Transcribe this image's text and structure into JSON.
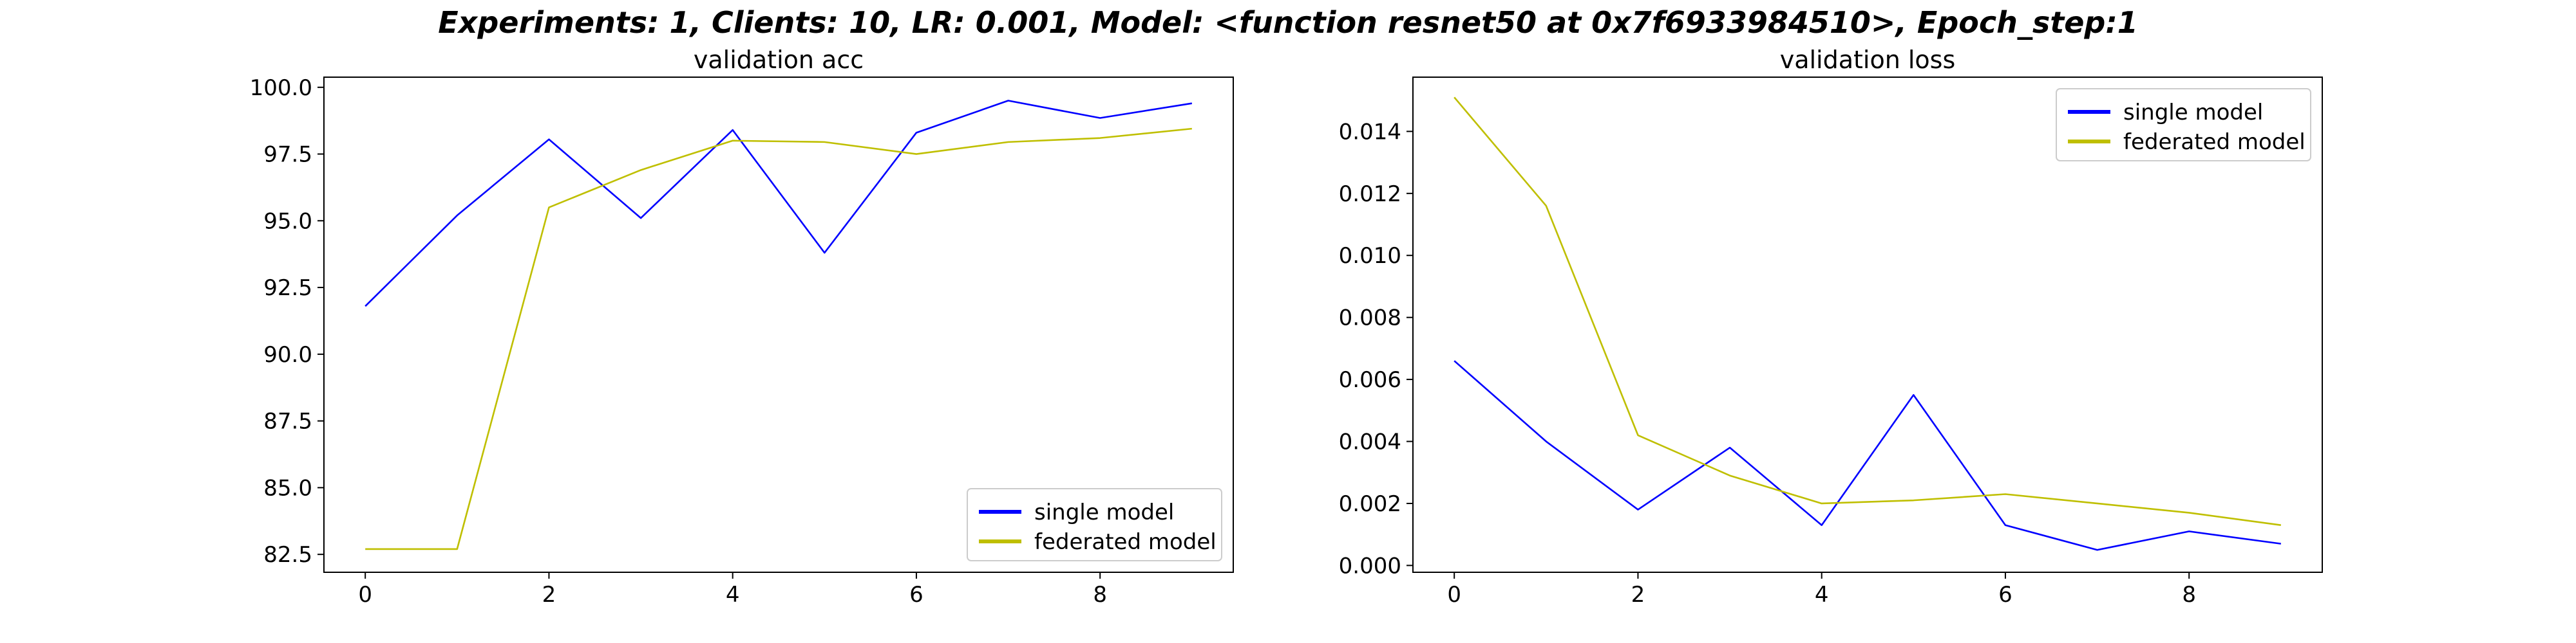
{
  "figure": {
    "suptitle": "Experiments: 1, Clients: 10, LR: 0.001, Model: <function resnet50 at 0x7f6933984510>, Epoch_step:1"
  },
  "chart_data": [
    {
      "type": "line",
      "title": "validation acc",
      "xlabel": "",
      "ylabel": "",
      "x": [
        0,
        1,
        2,
        3,
        4,
        5,
        6,
        7,
        8,
        9
      ],
      "xticks": [
        "0",
        "2",
        "4",
        "6",
        "8"
      ],
      "xtick_values": [
        0,
        2,
        4,
        6,
        8
      ],
      "xlim": [
        -0.45,
        9.45
      ],
      "yticks": [
        "82.5",
        "85.0",
        "87.5",
        "90.0",
        "92.5",
        "95.0",
        "97.5",
        "100.0"
      ],
      "ytick_values": [
        82.5,
        85.0,
        87.5,
        90.0,
        92.5,
        95.0,
        97.5,
        100.0
      ],
      "ylim": [
        81.83,
        100.38
      ],
      "grid": false,
      "legend_position": "lower-right",
      "series": [
        {
          "name": "single model",
          "color": "#0000ff",
          "values": [
            91.8,
            95.2,
            98.05,
            95.1,
            98.4,
            93.8,
            98.3,
            99.5,
            98.85,
            99.4
          ]
        },
        {
          "name": "federated model",
          "color": "#bfbf00",
          "values": [
            82.7,
            82.7,
            95.5,
            96.9,
            98.0,
            97.95,
            97.5,
            97.95,
            98.1,
            98.45
          ]
        }
      ]
    },
    {
      "type": "line",
      "title": "validation loss",
      "xlabel": "",
      "ylabel": "",
      "x": [
        0,
        1,
        2,
        3,
        4,
        5,
        6,
        7,
        8,
        9
      ],
      "xticks": [
        "0",
        "2",
        "4",
        "6",
        "8"
      ],
      "xtick_values": [
        0,
        2,
        4,
        6,
        8
      ],
      "xlim": [
        -0.45,
        9.45
      ],
      "yticks": [
        "0.000",
        "0.002",
        "0.004",
        "0.006",
        "0.008",
        "0.010",
        "0.012",
        "0.014"
      ],
      "ytick_values": [
        0,
        0.002,
        0.004,
        0.006,
        0.008,
        0.01,
        0.012,
        0.014
      ],
      "ylim": [
        -0.00022,
        0.01575
      ],
      "grid": false,
      "legend_position": "upper-right",
      "series": [
        {
          "name": "single model",
          "color": "#0000ff",
          "values": [
            0.0066,
            0.004,
            0.0018,
            0.0038,
            0.0013,
            0.0055,
            0.0013,
            0.0005,
            0.0011,
            0.0007
          ]
        },
        {
          "name": "federated model",
          "color": "#bfbf00",
          "values": [
            0.0151,
            0.0116,
            0.0042,
            0.0029,
            0.002,
            0.0021,
            0.0023,
            0.002,
            0.0017,
            0.0013
          ]
        }
      ]
    }
  ]
}
